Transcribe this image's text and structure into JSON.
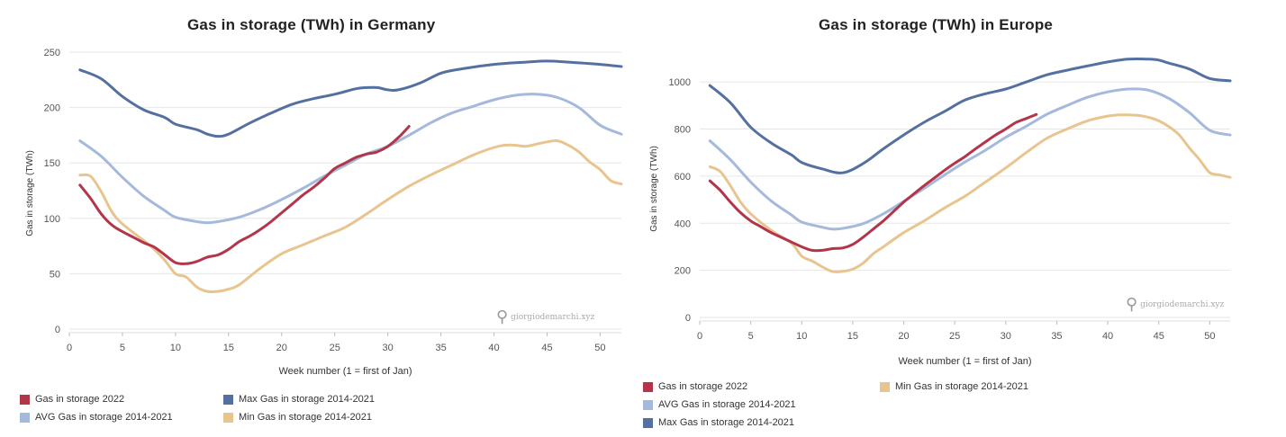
{
  "chart_data": [
    {
      "type": "line",
      "title": "Gas in storage (TWh) in Germany",
      "xlabel": "Week number (1 = first of Jan)",
      "ylabel": "Gas in storage (TWh)",
      "xlim": [
        0,
        52
      ],
      "ylim": [
        0,
        250
      ],
      "xticks": [
        0,
        5,
        10,
        15,
        20,
        25,
        30,
        35,
        40,
        45,
        50
      ],
      "yticks": [
        0,
        50,
        100,
        150,
        200,
        250
      ],
      "grid": true,
      "watermark": "giorgiodemarchi.xyz",
      "series": [
        {
          "name": "Max Gas in storage 2014-2021",
          "color": "#5470a0",
          "x": [
            1,
            3,
            5,
            7,
            9,
            10,
            12,
            13,
            14,
            15,
            17,
            19,
            21,
            23,
            25,
            27,
            28,
            29,
            30,
            31,
            33,
            35,
            37,
            40,
            43,
            45,
            47,
            50,
            52
          ],
          "y": [
            234,
            226,
            210,
            198,
            191,
            185,
            180,
            176,
            174,
            176,
            186,
            195,
            203,
            208,
            212,
            217,
            218,
            218,
            216,
            216,
            222,
            231,
            235,
            239,
            241,
            242,
            241,
            239,
            237
          ]
        },
        {
          "name": "AVG Gas in storage 2014-2021",
          "color": "#a4b9dc",
          "x": [
            1,
            3,
            5,
            7,
            9,
            10,
            12,
            13,
            14,
            16,
            18,
            20,
            22,
            24,
            26,
            28,
            30,
            32,
            34,
            36,
            38,
            40,
            42,
            44,
            46,
            48,
            50,
            52
          ],
          "y": [
            170,
            156,
            137,
            120,
            107,
            101,
            97,
            96,
            97,
            101,
            108,
            117,
            127,
            138,
            148,
            158,
            165,
            175,
            186,
            195,
            201,
            207,
            211,
            212,
            209,
            200,
            184,
            176
          ]
        },
        {
          "name": "Min Gas in storage 2014-2021",
          "color": "#e8c48f",
          "x": [
            1,
            2,
            3,
            4,
            5,
            7,
            8,
            9,
            10,
            11,
            12,
            13,
            14,
            15,
            16,
            18,
            20,
            22,
            24,
            26,
            28,
            30,
            32,
            34,
            36,
            38,
            40,
            41,
            42,
            43,
            44,
            45,
            46,
            47,
            48,
            49,
            50,
            51,
            52
          ],
          "y": [
            139,
            138,
            124,
            106,
            95,
            80,
            72,
            62,
            50,
            47,
            38,
            34,
            34,
            36,
            40,
            55,
            68,
            76,
            84,
            92,
            104,
            117,
            129,
            139,
            148,
            157,
            164,
            166,
            166,
            165,
            167,
            169,
            170,
            166,
            160,
            151,
            144,
            134,
            131
          ]
        },
        {
          "name": "Gas in storage 2022",
          "color": "#b3354a",
          "x": [
            1,
            2,
            3,
            4,
            5,
            6,
            7,
            8,
            9,
            10,
            11,
            12,
            13,
            14,
            15,
            16,
            17,
            18,
            19,
            20,
            21,
            22,
            23,
            24,
            25,
            26,
            27,
            28,
            29,
            30,
            31,
            32
          ],
          "y": [
            130,
            118,
            104,
            94,
            88,
            83,
            78,
            74,
            67,
            60,
            59,
            61,
            65,
            67,
            72,
            79,
            84,
            90,
            97,
            105,
            113,
            121,
            128,
            136,
            145,
            150,
            155,
            158,
            160,
            165,
            173,
            183
          ]
        }
      ],
      "legend": [
        {
          "name": "Gas in storage 2022",
          "color": "#b3354a"
        },
        {
          "name": "Max Gas in storage 2014-2021",
          "color": "#5470a0"
        },
        {
          "name": "AVG Gas in storage 2014-2021",
          "color": "#a4b9dc"
        },
        {
          "name": "Min Gas in storage 2014-2021",
          "color": "#e8c48f"
        }
      ],
      "legend_placement": "bottom, two columns"
    },
    {
      "type": "line",
      "title": "Gas in storage (TWh) in Europe",
      "xlabel": "Week number (1 = first of Jan)",
      "ylabel": "Gas in storage (TWh)",
      "xlim": [
        0,
        52
      ],
      "ylim": [
        0,
        1100
      ],
      "xticks": [
        0,
        5,
        10,
        15,
        20,
        25,
        30,
        35,
        40,
        45,
        50
      ],
      "yticks": [
        0,
        200,
        400,
        600,
        800,
        1000
      ],
      "grid": true,
      "watermark": "giorgiodemarchi.xyz",
      "series": [
        {
          "name": "Max Gas in storage 2014-2021",
          "color": "#5470a0",
          "x": [
            1,
            3,
            5,
            7,
            9,
            10,
            12,
            14,
            16,
            18,
            20,
            22,
            24,
            26,
            28,
            30,
            32,
            34,
            36,
            38,
            40,
            42,
            44,
            45,
            46,
            48,
            50,
            52
          ],
          "y": [
            985,
            912,
            808,
            741,
            690,
            658,
            631,
            614,
            653,
            716,
            775,
            829,
            875,
            923,
            950,
            970,
            1000,
            1030,
            1050,
            1068,
            1085,
            1097,
            1097,
            1093,
            1080,
            1055,
            1015,
            1005
          ]
        },
        {
          "name": "AVG Gas in storage 2014-2021",
          "color": "#a4b9dc",
          "x": [
            1,
            3,
            5,
            7,
            9,
            10,
            12,
            13,
            14,
            16,
            18,
            20,
            22,
            24,
            26,
            28,
            30,
            32,
            34,
            36,
            38,
            40,
            42,
            44,
            46,
            48,
            50,
            52
          ],
          "y": [
            750,
            670,
            575,
            495,
            435,
            405,
            383,
            375,
            378,
            398,
            440,
            493,
            548,
            605,
            660,
            710,
            765,
            812,
            862,
            900,
            935,
            958,
            970,
            965,
            930,
            870,
            795,
            775
          ]
        },
        {
          "name": "Min Gas in storage 2014-2021",
          "color": "#e8c48f",
          "x": [
            1,
            2,
            3,
            4,
            5,
            7,
            9,
            10,
            11,
            12,
            13,
            14,
            15,
            16,
            17,
            18,
            20,
            22,
            24,
            26,
            28,
            30,
            32,
            34,
            36,
            38,
            40,
            41,
            42,
            43,
            44,
            45,
            46,
            47,
            48,
            49,
            50,
            51,
            52
          ],
          "y": [
            640,
            620,
            560,
            490,
            440,
            370,
            315,
            260,
            240,
            215,
            195,
            195,
            205,
            230,
            270,
            300,
            360,
            410,
            465,
            515,
            575,
            635,
            700,
            760,
            800,
            835,
            855,
            860,
            860,
            858,
            850,
            835,
            810,
            775,
            720,
            670,
            615,
            605,
            595
          ]
        },
        {
          "name": "Gas in storage 2022",
          "color": "#b3354a",
          "x": [
            1,
            2,
            3,
            4,
            5,
            6,
            7,
            8,
            9,
            10,
            11,
            12,
            13,
            14,
            15,
            16,
            17,
            18,
            19,
            20,
            21,
            22,
            23,
            24,
            25,
            26,
            27,
            28,
            29,
            30,
            31,
            32,
            33
          ],
          "y": [
            580,
            540,
            490,
            445,
            410,
            385,
            360,
            340,
            320,
            300,
            285,
            285,
            292,
            295,
            310,
            340,
            375,
            410,
            450,
            490,
            525,
            560,
            592,
            625,
            655,
            683,
            715,
            745,
            775,
            800,
            828,
            845,
            862
          ]
        }
      ],
      "legend": [
        {
          "name": "Gas in storage 2022",
          "color": "#b3354a"
        },
        {
          "name": "Min Gas in storage 2014-2021",
          "color": "#e8c48f"
        },
        {
          "name": "AVG Gas in storage 2014-2021",
          "color": "#a4b9dc"
        },
        {
          "name": "Max Gas in storage 2014-2021",
          "color": "#5470a0"
        }
      ],
      "legend_placement": "bottom, two columns"
    }
  ]
}
